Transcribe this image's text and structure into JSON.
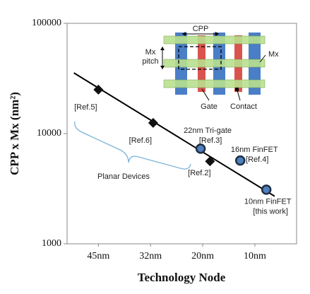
{
  "chart_data": {
    "type": "scatter",
    "x_label": "Technology Node",
    "y_label": "CPP x Mx (nm²)",
    "ylog": true,
    "xlim": [
      -0.6,
      3.8
    ],
    "ylim": [
      1000,
      100000
    ],
    "yticks": [
      1000,
      10000,
      100000
    ],
    "xticks": [
      {
        "value": 0,
        "label": "45nm"
      },
      {
        "value": 1,
        "label": "32nm"
      },
      {
        "value": 2,
        "label": "20nm"
      },
      {
        "value": 3,
        "label": "10nm"
      }
    ],
    "series": [
      {
        "marker": "diamond",
        "color": "#111111",
        "x": [
          0,
          1.05,
          2.14
        ],
        "values": [
          25000,
          12500,
          5600
        ],
        "labels": [
          [
            "[Ref.5]"
          ],
          [
            "[Ref.6]"
          ],
          [
            "[Ref.2]"
          ]
        ]
      },
      {
        "marker": "circle",
        "color": "#4f81bd",
        "x": [
          1.96,
          2.72,
          3.22
        ],
        "values": [
          7300,
          5700,
          3100
        ],
        "labels": [
          [
            "22nm Tri-gate",
            "[Ref.3]"
          ],
          [
            "16nm FinFET",
            "[Ref.4]"
          ],
          [
            "10nm FinFET",
            "[this work]"
          ]
        ]
      }
    ],
    "trend_line": {
      "x": [
        -0.47,
        3.38
      ],
      "values": [
        35500,
        2700
      ],
      "color": "#000000"
    },
    "annotation": "Planar Devices",
    "inset": {
      "cpp": "CPP",
      "mx_pitch": [
        "Mx",
        "pitch"
      ],
      "mx": "Mx",
      "gate": "Gate",
      "contact": "Contact"
    }
  }
}
